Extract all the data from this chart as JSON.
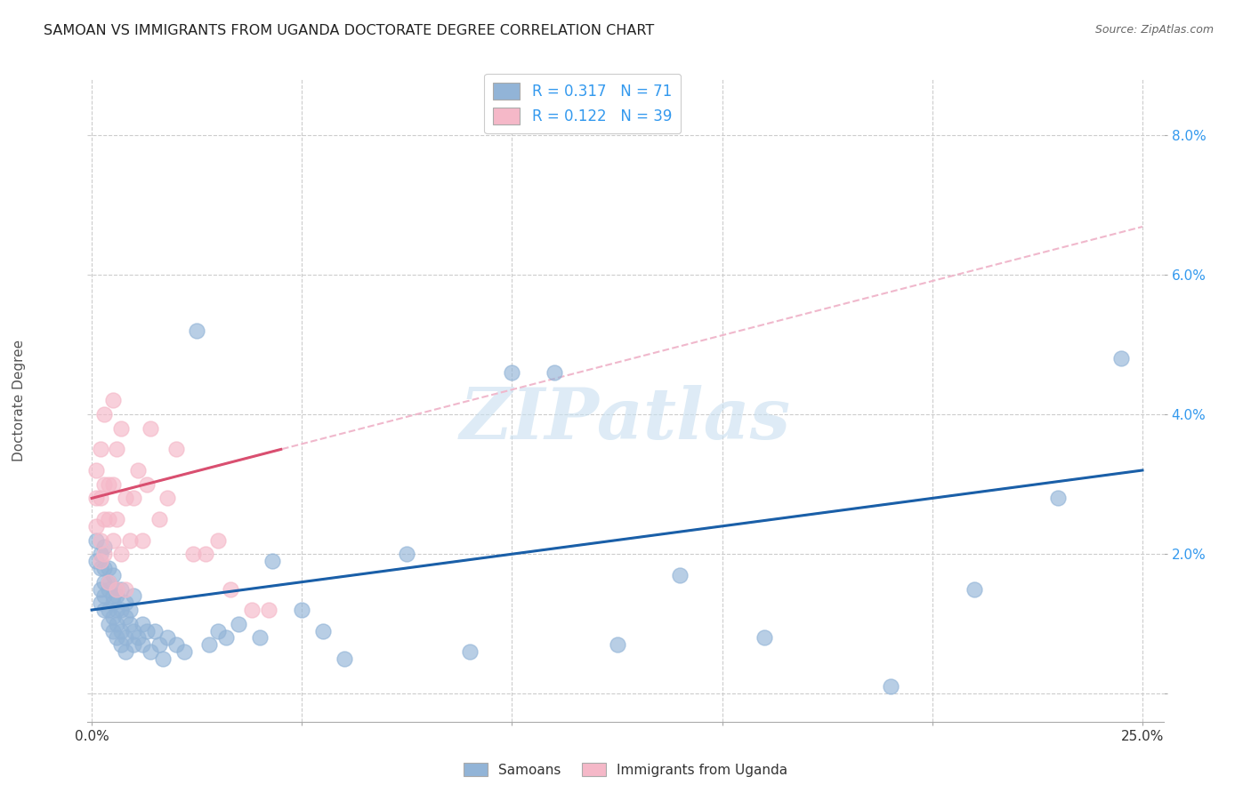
{
  "title": "SAMOAN VS IMMIGRANTS FROM UGANDA DOCTORATE DEGREE CORRELATION CHART",
  "source": "Source: ZipAtlas.com",
  "ylabel": "Doctorate Degree",
  "y_ticks": [
    0.0,
    0.02,
    0.04,
    0.06,
    0.08
  ],
  "y_tick_labels": [
    "",
    "2.0%",
    "4.0%",
    "6.0%",
    "8.0%"
  ],
  "x_ticks": [
    0.0,
    0.05,
    0.1,
    0.15,
    0.2,
    0.25
  ],
  "x_tick_labels": [
    "0.0%",
    "",
    "",
    "",
    "",
    "25.0%"
  ],
  "xlim": [
    -0.001,
    0.255
  ],
  "ylim": [
    -0.004,
    0.088
  ],
  "legend_r1": "0.317",
  "legend_n1": "71",
  "legend_r2": "0.122",
  "legend_n2": "39",
  "blue_scatter_color": "#92b4d7",
  "pink_scatter_color": "#f5b8c8",
  "blue_line_color": "#1a5fa8",
  "pink_line_color": "#d94f70",
  "blue_dash_color": "#b0cce0",
  "pink_dash_color": "#f0b8cc",
  "background_color": "#ffffff",
  "grid_color": "#cccccc",
  "watermark": "ZIPatlas",
  "samoans_x": [
    0.001,
    0.001,
    0.002,
    0.002,
    0.002,
    0.002,
    0.003,
    0.003,
    0.003,
    0.003,
    0.003,
    0.004,
    0.004,
    0.004,
    0.004,
    0.004,
    0.005,
    0.005,
    0.005,
    0.005,
    0.005,
    0.006,
    0.006,
    0.006,
    0.006,
    0.006,
    0.007,
    0.007,
    0.007,
    0.007,
    0.008,
    0.008,
    0.008,
    0.008,
    0.009,
    0.009,
    0.01,
    0.01,
    0.01,
    0.011,
    0.012,
    0.012,
    0.013,
    0.014,
    0.015,
    0.016,
    0.017,
    0.018,
    0.02,
    0.022,
    0.025,
    0.028,
    0.03,
    0.032,
    0.035,
    0.04,
    0.043,
    0.05,
    0.055,
    0.06,
    0.075,
    0.09,
    0.1,
    0.11,
    0.125,
    0.14,
    0.16,
    0.19,
    0.21,
    0.23,
    0.245
  ],
  "samoans_y": [
    0.019,
    0.022,
    0.018,
    0.015,
    0.013,
    0.02,
    0.016,
    0.012,
    0.018,
    0.014,
    0.021,
    0.015,
    0.012,
    0.018,
    0.01,
    0.016,
    0.014,
    0.011,
    0.017,
    0.009,
    0.013,
    0.012,
    0.015,
    0.008,
    0.014,
    0.01,
    0.012,
    0.009,
    0.015,
    0.007,
    0.011,
    0.008,
    0.013,
    0.006,
    0.01,
    0.012,
    0.009,
    0.014,
    0.007,
    0.008,
    0.01,
    0.007,
    0.009,
    0.006,
    0.009,
    0.007,
    0.005,
    0.008,
    0.007,
    0.006,
    0.052,
    0.007,
    0.009,
    0.008,
    0.01,
    0.008,
    0.019,
    0.012,
    0.009,
    0.005,
    0.02,
    0.006,
    0.046,
    0.046,
    0.007,
    0.017,
    0.008,
    0.001,
    0.015,
    0.028,
    0.048
  ],
  "uganda_x": [
    0.001,
    0.001,
    0.001,
    0.002,
    0.002,
    0.002,
    0.002,
    0.003,
    0.003,
    0.003,
    0.003,
    0.004,
    0.004,
    0.004,
    0.005,
    0.005,
    0.005,
    0.006,
    0.006,
    0.006,
    0.007,
    0.007,
    0.008,
    0.008,
    0.009,
    0.01,
    0.011,
    0.012,
    0.013,
    0.014,
    0.016,
    0.018,
    0.02,
    0.024,
    0.027,
    0.03,
    0.033,
    0.038,
    0.042
  ],
  "uganda_y": [
    0.028,
    0.024,
    0.032,
    0.022,
    0.028,
    0.035,
    0.019,
    0.03,
    0.025,
    0.02,
    0.04,
    0.025,
    0.03,
    0.016,
    0.042,
    0.022,
    0.03,
    0.025,
    0.035,
    0.015,
    0.038,
    0.02,
    0.028,
    0.015,
    0.022,
    0.028,
    0.032,
    0.022,
    0.03,
    0.038,
    0.025,
    0.028,
    0.035,
    0.02,
    0.02,
    0.022,
    0.015,
    0.012,
    0.012
  ]
}
